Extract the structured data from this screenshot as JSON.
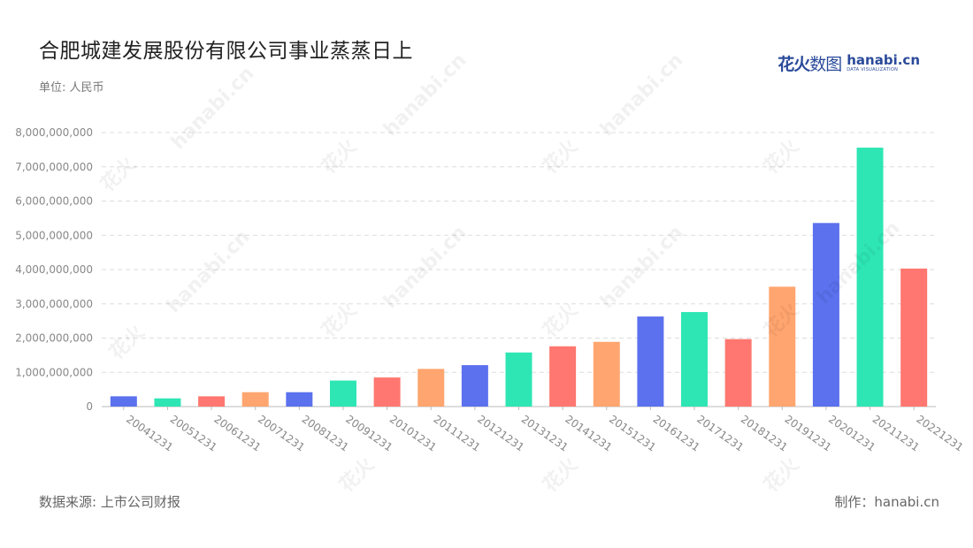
{
  "header": {
    "title": "合肥城建发展股份有限公司事业蒸蒸日上",
    "unit": "单位: 人民币"
  },
  "logo": {
    "cn_bold": "花火",
    "cn_light": "数图",
    "en_main": "hanabi.cn",
    "en_sub": "DATA VISUALIZATION"
  },
  "footer": {
    "source": "数据来源: 上市公司财报",
    "maker": "制作：hanabi.cn"
  },
  "colors": {
    "palette": [
      "#5b71ee",
      "#2ee6b4",
      "#ff7770",
      "#ffa56f"
    ],
    "grid": "#dddddd",
    "tick": "#888888"
  },
  "chart_data": {
    "type": "bar",
    "title": "合肥城建发展股份有限公司事业蒸蒸日上",
    "ylabel": "单位: 人民币",
    "ylim": [
      0,
      8000000000
    ],
    "yticks": [
      0,
      1000000000,
      2000000000,
      3000000000,
      4000000000,
      5000000000,
      6000000000,
      7000000000,
      8000000000
    ],
    "ytick_labels": [
      "0",
      "1,000,000,000",
      "2,000,000,000",
      "3,000,000,000",
      "4,000,000,000",
      "5,000,000,000",
      "6,000,000,000",
      "7,000,000,000",
      "8,000,000,000"
    ],
    "grid": true,
    "categories": [
      "20041231",
      "20051231",
      "20061231",
      "20071231",
      "20081231",
      "20091231",
      "20101231",
      "20111231",
      "20121231",
      "20131231",
      "20141231",
      "20151231",
      "20161231",
      "20171231",
      "20181231",
      "20191231",
      "20201231",
      "20211231",
      "20221231"
    ],
    "values": [
      300000000,
      240000000,
      300000000,
      420000000,
      420000000,
      760000000,
      850000000,
      1100000000,
      1210000000,
      1580000000,
      1760000000,
      1890000000,
      2630000000,
      2760000000,
      1970000000,
      3500000000,
      5360000000,
      7560000000,
      4030000000
    ]
  }
}
